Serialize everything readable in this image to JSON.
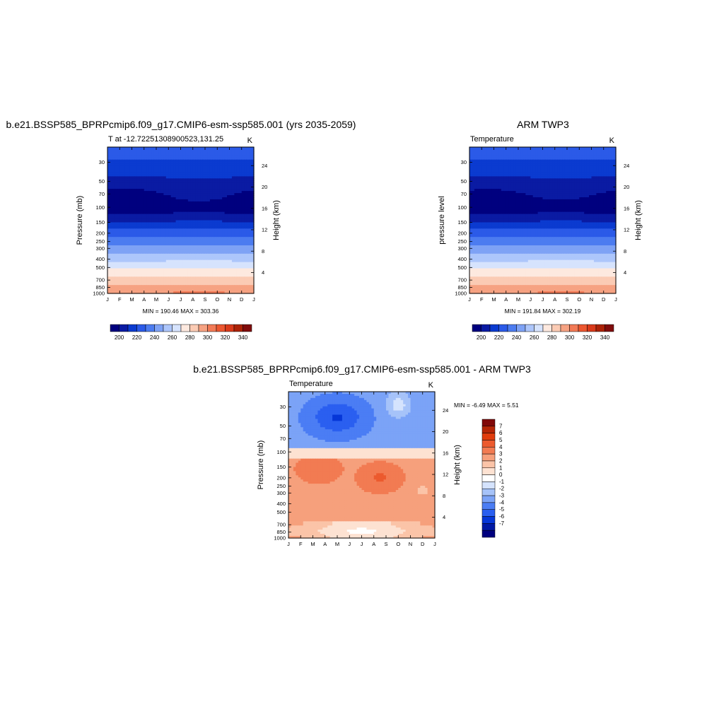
{
  "figure": {
    "panel1_title": "b.e21.BSSP585_BPRPcmip6.f09_g17.CMIP6-esm-ssp585.001 (yrs 2035-2059)",
    "panel2_title": "ARM TWP3",
    "panel3_title": "b.e21.BSSP585_BPRPcmip6.f09_g17.CMIP6-esm-ssp585.001 - ARM TWP3"
  },
  "colors": {
    "abs_scale": [
      "#00007f",
      "#0a1ba3",
      "#0b3bd0",
      "#2b5ae8",
      "#4c7cf0",
      "#7ea2f5",
      "#adc6fb",
      "#d6e3fd",
      "#fde9df",
      "#fbcbb4",
      "#f6a282",
      "#f27a56",
      "#ec5730",
      "#d93a1a",
      "#ac2207",
      "#800c0c"
    ],
    "diff_scale": [
      "#00007f",
      "#0019a5",
      "#0637d8",
      "#2a5ff0",
      "#4b7df4",
      "#7ba3f7",
      "#a6c3f9",
      "#d5e3fd",
      "#ffffff",
      "#fde2d2",
      "#fbc4a8",
      "#f6a07c",
      "#f27b52",
      "#ec5a2e",
      "#e03c0c",
      "#b52506",
      "#800808"
    ]
  },
  "chart_data": [
    {
      "type": "heatmap",
      "title": "b.e21.BSSP585_BPRPcmip6.f09_g17.CMIP6-esm-ssp585.001 (yrs 2035-2059)",
      "subtitle_left": "T at -12.72251308900523,131.25",
      "subtitle_right": "K",
      "xlabel": "",
      "ylabel": "Pressure (mb)",
      "ylabel_right": "Height (km)",
      "x": [
        "J",
        "F",
        "M",
        "A",
        "M",
        "J",
        "J",
        "A",
        "S",
        "O",
        "N",
        "D",
        "J"
      ],
      "y_ticks": [
        30,
        50,
        70,
        100,
        150,
        200,
        250,
        300,
        400,
        500,
        700,
        850,
        1000
      ],
      "y_right_ticks": [
        24,
        20,
        16,
        12,
        8,
        4
      ],
      "ylim": [
        1000,
        20
      ],
      "scale": "log-pressure",
      "min_max_text": "MIN = 190.46 MAX = 303.36",
      "min": 190.46,
      "max": 303.36,
      "colorbar_labels": [
        "200",
        "220",
        "240",
        "260",
        "280",
        "300",
        "320",
        "340"
      ]
    },
    {
      "type": "heatmap",
      "title": "ARM TWP3",
      "subtitle_left": "Temperature",
      "subtitle_right": "K",
      "xlabel": "",
      "ylabel": "pressure level",
      "ylabel_right": "Height (km)",
      "x": [
        "J",
        "F",
        "M",
        "A",
        "M",
        "J",
        "J",
        "A",
        "S",
        "O",
        "N",
        "D",
        "J"
      ],
      "y_ticks": [
        30,
        50,
        70,
        100,
        150,
        200,
        250,
        300,
        400,
        500,
        700,
        850,
        1000
      ],
      "y_right_ticks": [
        24,
        20,
        16,
        12,
        8,
        4
      ],
      "ylim": [
        1000,
        20
      ],
      "scale": "log-pressure",
      "min_max_text": "MIN = 191.84 MAX = 302.19",
      "min": 191.84,
      "max": 302.19,
      "colorbar_labels": [
        "200",
        "220",
        "240",
        "260",
        "280",
        "300",
        "320",
        "340"
      ]
    },
    {
      "type": "heatmap",
      "title": "b.e21.BSSP585_BPRPcmip6.f09_g17.CMIP6-esm-ssp585.001 - ARM TWP3",
      "subtitle_left": "Temperature",
      "subtitle_right": "K",
      "xlabel": "",
      "ylabel": "Pressure (mb)",
      "ylabel_right": "Height (km)",
      "x": [
        "J",
        "F",
        "M",
        "A",
        "M",
        "J",
        "J",
        "A",
        "S",
        "O",
        "N",
        "D",
        "J"
      ],
      "y_ticks": [
        30,
        50,
        70,
        100,
        150,
        200,
        250,
        300,
        400,
        500,
        700,
        850,
        1000
      ],
      "y_right_ticks": [
        24,
        20,
        16,
        12,
        8,
        4
      ],
      "ylim": [
        1000,
        20
      ],
      "scale": "log-pressure",
      "min_max_text": "MIN =  -6.49 MAX =   5.51",
      "min": -6.49,
      "max": 5.51,
      "colorbar_labels": [
        "7",
        "6",
        "5",
        "4",
        "3",
        "2",
        "1",
        "0",
        "-1",
        "-2",
        "-3",
        "-4",
        "-5",
        "-6",
        "-7"
      ]
    }
  ]
}
